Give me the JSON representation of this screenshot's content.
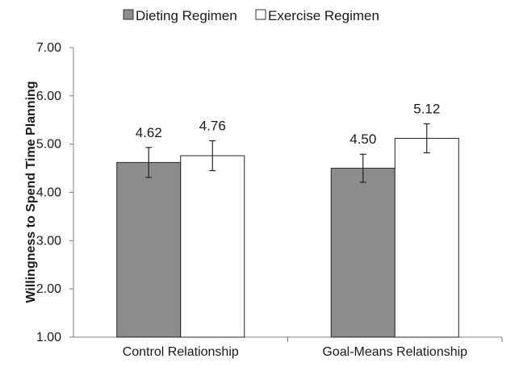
{
  "chart_data": {
    "type": "bar",
    "title": "",
    "xlabel": "",
    "ylabel": "Willingness to Spend Time Planning",
    "ylim": [
      1.0,
      7.0
    ],
    "yticks": [
      "1.00",
      "2.00",
      "3.00",
      "4.00",
      "5.00",
      "6.00",
      "7.00"
    ],
    "grid": false,
    "legend_position": "top",
    "categories": [
      "Control Relationship",
      "Goal-Means Relationship"
    ],
    "series": [
      {
        "name": "Dieting Regimen",
        "color": "#8c8c8c",
        "values": [
          4.62,
          4.5
        ],
        "labels": [
          "4.62",
          "4.50"
        ],
        "error": [
          0.31,
          0.29
        ]
      },
      {
        "name": "Exercise Regimen",
        "color": "#ffffff",
        "values": [
          4.76,
          5.12
        ],
        "labels": [
          "4.76",
          "5.12"
        ],
        "error": [
          0.31,
          0.3
        ]
      }
    ]
  }
}
